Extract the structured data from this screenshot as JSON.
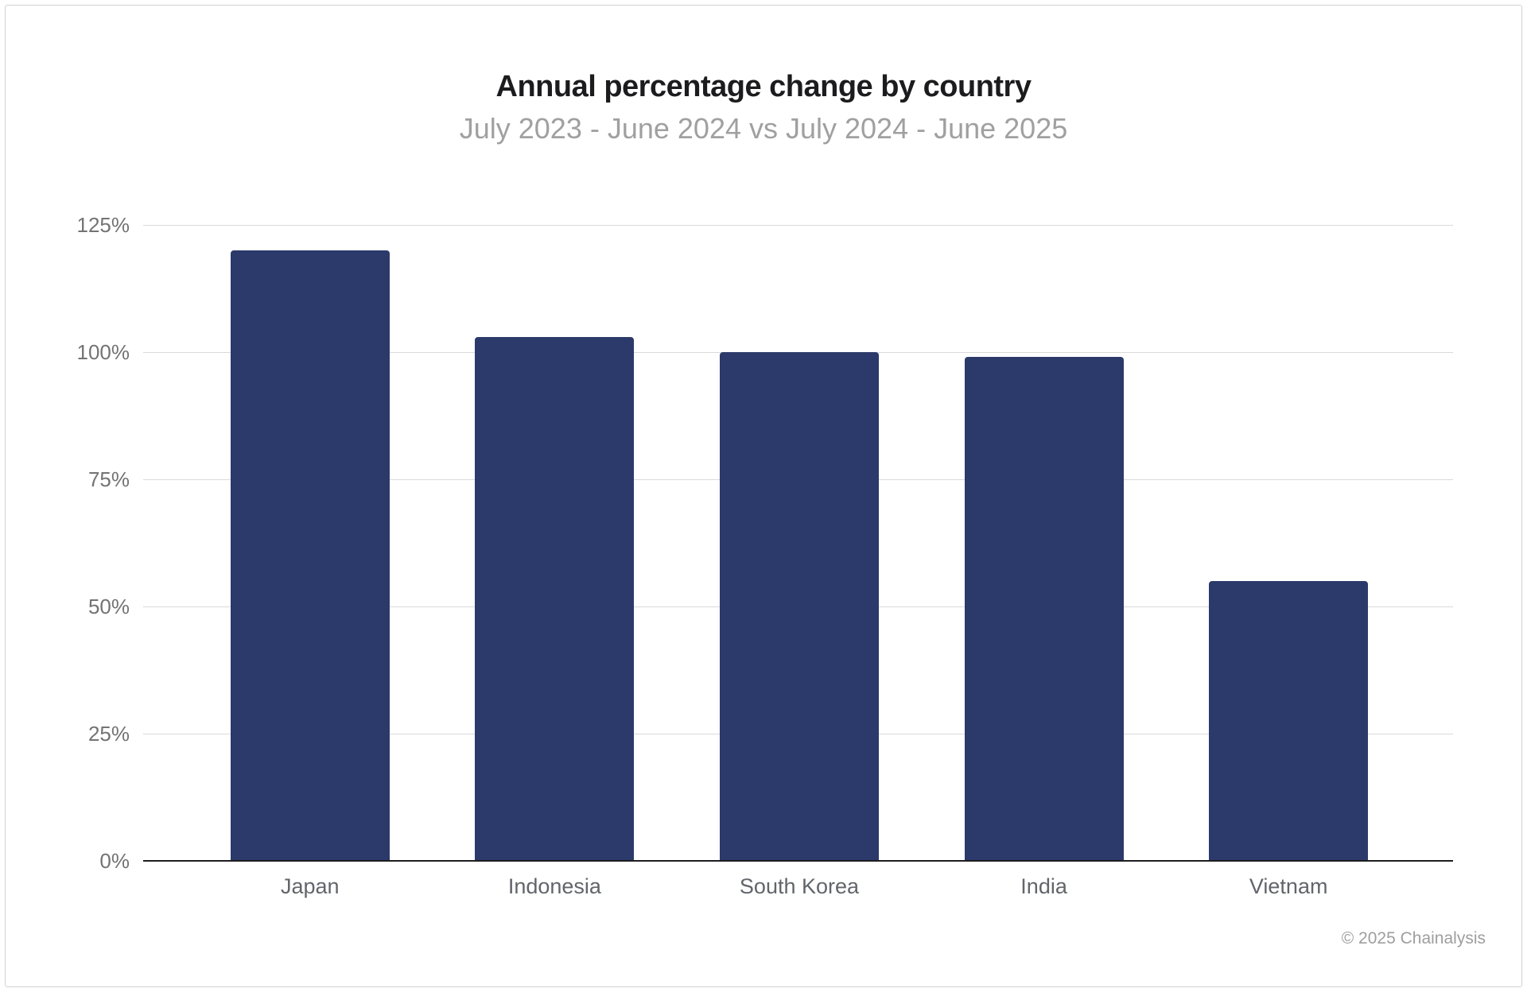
{
  "chart_data": {
    "type": "bar",
    "title": "Annual percentage change by country",
    "subtitle": "July 2023 - June 2024 vs July 2024 - June 2025",
    "categories": [
      "Japan",
      "Indonesia",
      "South Korea",
      "India",
      "Vietnam"
    ],
    "values": [
      120,
      103,
      100,
      99,
      55
    ],
    "unit": "%",
    "xlabel": "",
    "ylabel": "",
    "ylim": [
      0,
      125
    ],
    "yticks": [
      0,
      25,
      50,
      75,
      100,
      125
    ],
    "ytick_suffix": "%",
    "grid": true,
    "legend_position": "none"
  },
  "footer": {
    "credit": "© 2025 Chainalysis"
  },
  "colors": {
    "bar": "#2b3a6a",
    "gridline": "#dadada",
    "axis_line": "#1d1d20",
    "title_text": "#1c1c1e",
    "subtitle_text": "#a0a0a0",
    "tick_text": "#737373",
    "category_text": "#62656a",
    "credit_text": "#9e9e9e",
    "card_border": "#d2d2d2",
    "background": "#ffffff"
  }
}
